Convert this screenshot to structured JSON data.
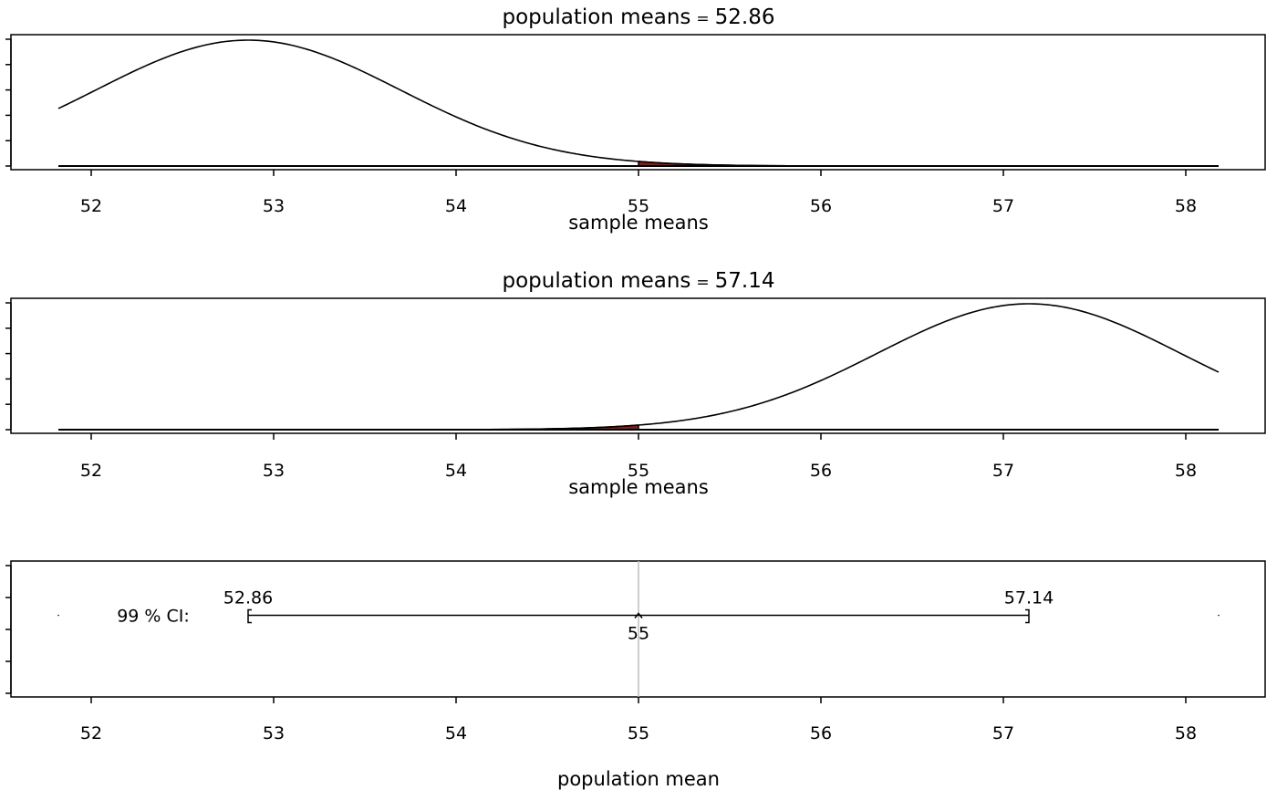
{
  "chart_data": [
    {
      "type": "line",
      "title": "population means = 52.86",
      "title_prefix": "population means",
      "title_value": "52.86",
      "xlabel": "sample means",
      "ylabel": "",
      "xlim": [
        51.82,
        58.18
      ],
      "xticks": [
        52,
        53,
        54,
        55,
        56,
        57,
        58
      ],
      "curve": {
        "distribution": "normal",
        "mean": 52.86,
        "sd": 0.831
      },
      "shaded_region": {
        "from": 55,
        "to": 58.18,
        "color": "#8b1a1a"
      },
      "grid": false,
      "legend": "none"
    },
    {
      "type": "line",
      "title": "population means = 57.14",
      "title_prefix": "population means",
      "title_value": "57.14",
      "xlabel": "sample means",
      "ylabel": "",
      "xlim": [
        51.82,
        58.18
      ],
      "xticks": [
        52,
        53,
        54,
        55,
        56,
        57,
        58
      ],
      "curve": {
        "distribution": "normal",
        "mean": 57.14,
        "sd": 0.831
      },
      "shaded_region": {
        "from": 51.82,
        "to": 55,
        "color": "#8b1a1a"
      },
      "grid": false,
      "legend": "none"
    },
    {
      "type": "scatter",
      "title": "",
      "xlabel": "population mean",
      "ylabel": "",
      "xlim": [
        51.82,
        58.18
      ],
      "xticks": [
        52,
        53,
        54,
        55,
        56,
        57,
        58
      ],
      "ci_label": "99 % CI:",
      "ci": {
        "lower": 52.86,
        "upper": 57.14,
        "estimate": 55
      },
      "lower_label": "52.86",
      "upper_label": "57.14",
      "estimate_label": "55",
      "reference_line": 55,
      "reference_color": "#bebebe",
      "grid": false,
      "legend": "none"
    }
  ]
}
